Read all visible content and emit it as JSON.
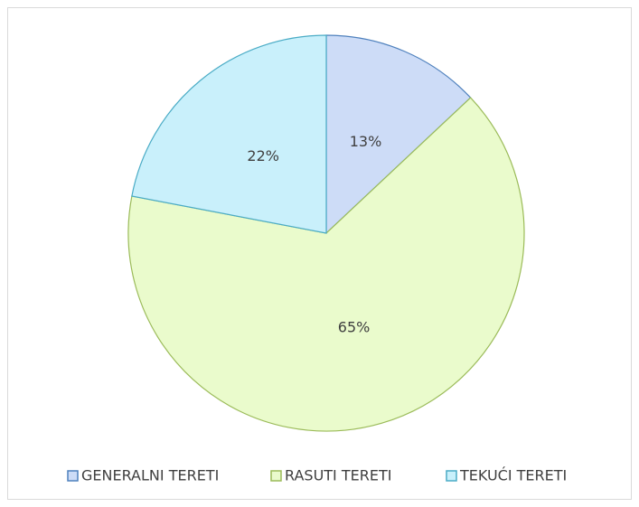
{
  "chart_data": {
    "type": "pie",
    "categories": [
      "GENERALNI TERETI",
      "RASUTI TERETI",
      "TEKUĆI TERETI"
    ],
    "values": [
      13,
      65,
      22
    ],
    "value_labels": [
      "13%",
      "65%",
      "22%"
    ],
    "colors": [
      "#cddcf7",
      "#eafbcc",
      "#c9f0fb"
    ],
    "border_colors": [
      "#4f81bd",
      "#9bbb59",
      "#4bacc6"
    ],
    "legend": "bottom"
  }
}
